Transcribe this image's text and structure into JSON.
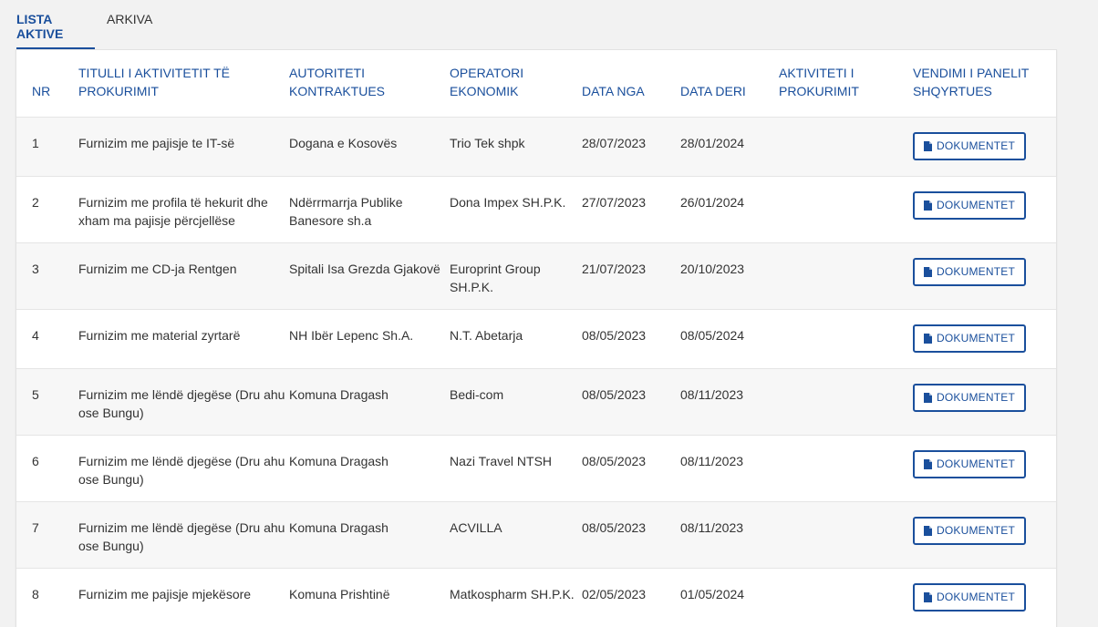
{
  "tabs": [
    {
      "label": "LISTA AKTIVE",
      "active": true
    },
    {
      "label": "ARKIVA",
      "active": false
    }
  ],
  "table": {
    "headers": {
      "nr": "NR",
      "title": "TITULLI I AKTIVITETIT TË PROKURIMIT",
      "authority": "AUTORITETI KONTRAKTUES",
      "operator": "OPERATORI EKONOMIK",
      "date_from": "DATA NGA",
      "date_to": "DATA DERI",
      "activity": "AKTIVITETI I PROKURIMIT",
      "decision": "VENDIMI I PANELIT SHQYRTUES"
    },
    "button_label": "DOKUMENTET",
    "button_icon": "file-icon",
    "rows": [
      {
        "nr": "1",
        "title": "Furnizim me pajisje te IT-së",
        "authority": "Dogana e Kosovës",
        "operator": "Trio Tek shpk",
        "date_from": "28/07/2023",
        "date_to": "28/01/2024"
      },
      {
        "nr": "2",
        "title": "Furnizim me profila të hekurit dhe xham ma pajisje përcjellëse",
        "authority": "Ndërrmarrja Publike Banesore sh.a",
        "operator": "Dona Impex SH.P.K.",
        "date_from": "27/07/2023",
        "date_to": "26/01/2024"
      },
      {
        "nr": "3",
        "title": "Furnizim me CD-ja Rentgen",
        "authority": "Spitali Isa Grezda Gjakovë",
        "operator": "Europrint Group SH.P.K.",
        "date_from": "21/07/2023",
        "date_to": "20/10/2023"
      },
      {
        "nr": "4",
        "title": "Furnizim me material zyrtarë",
        "authority": "NH Ibër Lepenc Sh.A.",
        "operator": "N.T. Abetarja",
        "date_from": "08/05/2023",
        "date_to": "08/05/2024"
      },
      {
        "nr": "5",
        "title": "Furnizim me lëndë djegëse (Dru ahu ose Bungu)",
        "authority": "Komuna Dragash",
        "operator": "Bedi-com",
        "date_from": "08/05/2023",
        "date_to": "08/11/2023"
      },
      {
        "nr": "6",
        "title": "Furnizim me lëndë djegëse (Dru ahu ose Bungu)",
        "authority": "Komuna Dragash",
        "operator": "Nazi Travel NTSH",
        "date_from": "08/05/2023",
        "date_to": "08/11/2023"
      },
      {
        "nr": "7",
        "title": "Furnizim me lëndë djegëse (Dru ahu ose Bungu)",
        "authority": "Komuna Dragash",
        "operator": "ACVILLA",
        "date_from": "08/05/2023",
        "date_to": "08/11/2023"
      },
      {
        "nr": "8",
        "title": "Furnizim me pajisje mjekësore",
        "authority": "Komuna Prishtinë",
        "operator": "Matkospharm SH.P.K.",
        "date_from": "02/05/2023",
        "date_to": "01/05/2024"
      }
    ]
  }
}
